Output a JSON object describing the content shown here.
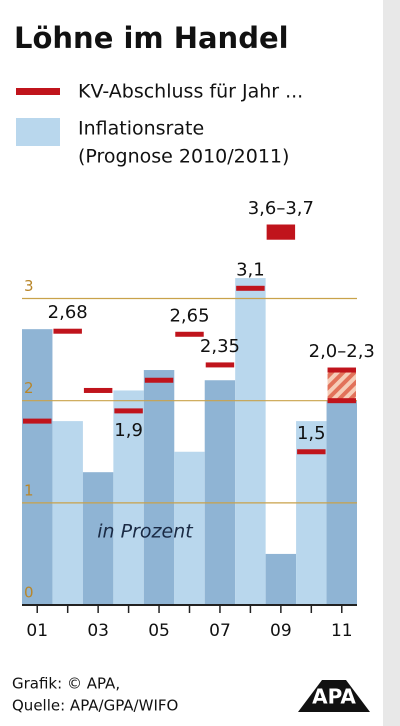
{
  "chart_data": {
    "type": "bar",
    "title": "Löhne im Handel",
    "categories": [
      "01",
      null,
      "03",
      null,
      "05",
      null,
      "07",
      null,
      "09",
      null,
      "11"
    ],
    "series": [
      {
        "name": "Inflationsrate",
        "note": "(Prognose 2010/2011)",
        "colors": [
          "#8fb4d4",
          "#b9d7ed"
        ],
        "values": [
          2.7,
          1.8,
          1.3,
          2.1,
          2.3,
          1.5,
          2.2,
          3.2,
          0.5,
          1.8,
          2.0
        ]
      },
      {
        "name": "KV-Abschluss für Jahr ...",
        "color": "#c0141c",
        "values": [
          1.8,
          2.68,
          2.1,
          1.9,
          2.2,
          2.65,
          2.35,
          3.1,
          3.6,
          1.5,
          2.0
        ],
        "values_high": [
          null,
          null,
          null,
          null,
          null,
          null,
          null,
          null,
          3.7,
          null,
          2.3
        ],
        "value_labels": [
          null,
          "2,68",
          null,
          "1,9",
          null,
          "2,65",
          "2,35",
          "3,1",
          "3,6–3,7",
          "1,5",
          "2,0–2,3"
        ]
      }
    ],
    "ylim": [
      0,
      3.7
    ],
    "yticks": [
      0,
      1,
      2,
      3
    ],
    "grid": true,
    "annotation": "in Prozent",
    "footer": [
      "Grafik: © APA,",
      "Quelle: APA/GPA/WIFO"
    ],
    "logo": "APA"
  }
}
